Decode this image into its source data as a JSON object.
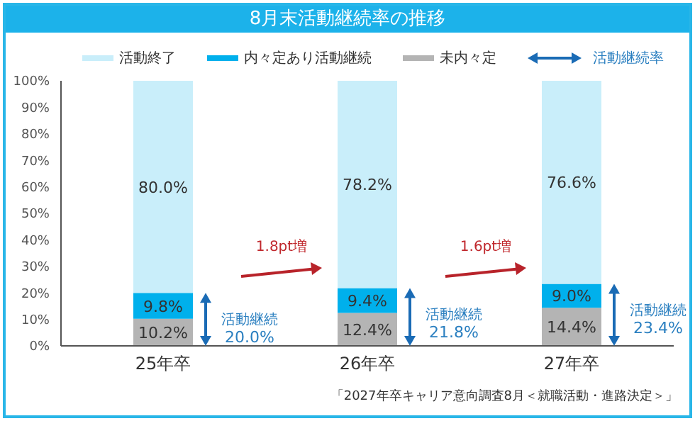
{
  "chart_data": {
    "type": "bar",
    "title": "8月末活動継続率の推移",
    "stacked": true,
    "legend": "top",
    "categories": [
      "25年卒",
      "26年卒",
      "27年卒"
    ],
    "series": [
      {
        "name": "未内々定",
        "color": "#b4b4b4",
        "values": [
          10.2,
          12.4,
          14.4
        ],
        "value_labels": [
          "10.2%",
          "12.4%",
          "14.4%"
        ]
      },
      {
        "name": "内々定あり活動継続",
        "color": "#00b0ec",
        "values": [
          9.8,
          9.4,
          9.0
        ],
        "value_labels": [
          "9.8%",
          "9.4%",
          "9.0%"
        ]
      },
      {
        "name": "活動終了",
        "color": "#c9eefa",
        "values": [
          80.0,
          78.2,
          76.6
        ],
        "value_labels": [
          "80.0%",
          "78.2%",
          "76.6%"
        ]
      }
    ],
    "ylim": [
      0,
      100
    ],
    "yticks": [
      {
        "value": 0,
        "label": "0%"
      },
      {
        "value": 10,
        "label": "10%"
      },
      {
        "value": 20,
        "label": "20%"
      },
      {
        "value": 30,
        "label": "30%"
      },
      {
        "value": 40,
        "label": "40%"
      },
      {
        "value": 50,
        "label": "50%"
      },
      {
        "value": 60,
        "label": "60%"
      },
      {
        "value": 70,
        "label": "70%"
      },
      {
        "value": 80,
        "label": "80%"
      },
      {
        "value": 90,
        "label": "90%"
      },
      {
        "value": 100,
        "label": "100%"
      }
    ],
    "annotations": [
      "活動継続率",
      "1.8pt増",
      "1.6pt増",
      "活動継続 20.0%",
      "活動継続 21.8%",
      "活動継続 23.4%",
      "「2027年卒キャリア意向調査8月＜就職活動・進路決定＞」"
    ]
  }
}
